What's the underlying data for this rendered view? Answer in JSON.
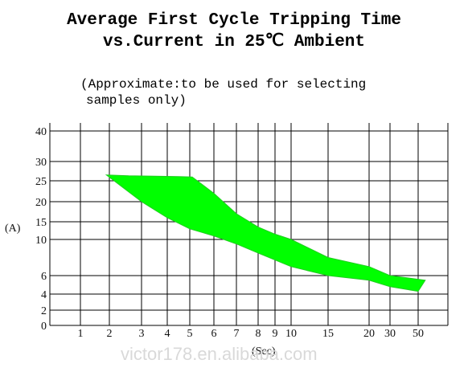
{
  "chart_data": {
    "type": "area",
    "title": "Average First Cycle Tripping Time",
    "subtitle": "vs.Current in 25℃ Ambient",
    "note_line1": "(Approximate:to be used for selecting",
    "note_line2": "samples only)",
    "xlabel": "(Sec)",
    "ylabel": "(A)",
    "x_ticks": [
      "1",
      "2",
      "3",
      "4",
      "5",
      "6",
      "7",
      "8",
      "9",
      "10",
      "15",
      "20",
      "30",
      "50"
    ],
    "y_ticks": [
      "40",
      "30",
      "25",
      "20",
      "15",
      "10",
      "6",
      "4",
      "2",
      "0"
    ],
    "band": {
      "color": "#00ff00",
      "upper": [
        [
          1.9,
          26.5
        ],
        [
          2.6,
          26.3
        ],
        [
          3.5,
          26.2
        ],
        [
          4.5,
          26.1
        ],
        [
          5.1,
          26.0
        ],
        [
          6.0,
          22.0
        ],
        [
          7.0,
          17.0
        ],
        [
          8.0,
          13.5
        ],
        [
          9.0,
          11.5
        ],
        [
          10.0,
          10.0
        ],
        [
          15.0,
          8.0
        ],
        [
          20.0,
          7.0
        ],
        [
          30.0,
          6.0
        ],
        [
          55.0,
          5.5
        ]
      ],
      "lower": [
        [
          1.9,
          26.5
        ],
        [
          3.0,
          20.0
        ],
        [
          4.0,
          16.0
        ],
        [
          5.0,
          13.0
        ],
        [
          6.0,
          11.0
        ],
        [
          7.0,
          9.5
        ],
        [
          8.0,
          8.5
        ],
        [
          10.0,
          7.0
        ],
        [
          15.0,
          6.0
        ],
        [
          20.0,
          5.5
        ],
        [
          30.0,
          4.8
        ],
        [
          50.0,
          4.3
        ]
      ]
    },
    "grid": true
  },
  "watermark": "victor178.en.alibaba.com"
}
